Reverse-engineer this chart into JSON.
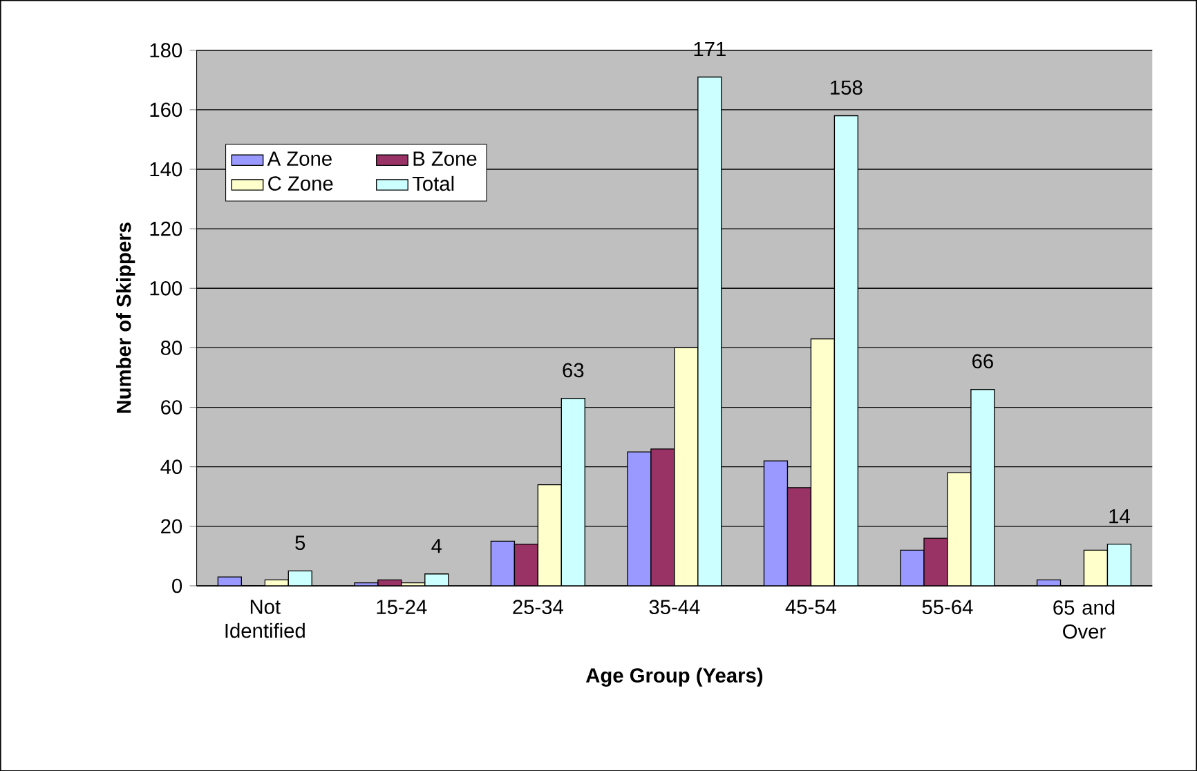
{
  "chart_data": {
    "type": "bar",
    "xlabel": "Age Group (Years)",
    "ylabel": "Number of Skippers",
    "categories": [
      "Not Identified",
      "15-24",
      "25-34",
      "35-44",
      "45-54",
      "55-64",
      "65 and Over"
    ],
    "series": [
      {
        "name": "A Zone",
        "color": "#9999ff",
        "values": [
          3,
          1,
          15,
          45,
          42,
          12,
          2
        ]
      },
      {
        "name": "B Zone",
        "color": "#993366",
        "values": [
          0,
          2,
          14,
          46,
          33,
          16,
          0
        ]
      },
      {
        "name": "C Zone",
        "color": "#ffffcc",
        "values": [
          2,
          1,
          34,
          80,
          83,
          38,
          12
        ]
      },
      {
        "name": "Total",
        "color": "#ccffff",
        "values": [
          5,
          4,
          63,
          171,
          158,
          66,
          14
        ],
        "value_labels": [
          "5",
          "4",
          "63",
          "171",
          "158",
          "66",
          "14"
        ]
      }
    ],
    "ylim": [
      0,
      180
    ],
    "yticks": [
      0,
      20,
      40,
      60,
      80,
      100,
      120,
      140,
      160,
      180
    ],
    "grid": "y",
    "legend": "top left"
  }
}
